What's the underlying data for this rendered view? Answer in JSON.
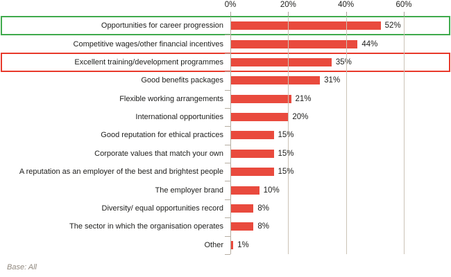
{
  "chart_data": {
    "type": "bar",
    "orientation": "horizontal",
    "title": "",
    "xlabel": "",
    "ylabel": "",
    "categories": [
      "Opportunities for career progression",
      "Competitive wages/other financial incentives",
      "Excellent training/development programmes",
      "Good benefits packages",
      "Flexible working arrangements",
      "International opportunities",
      "Good reputation for ethical practices",
      "Corporate values that match your own",
      "A reputation as an employer of the best and brightest people",
      "The employer brand",
      "Diversity/ equal opportunities record",
      "The sector in which the organisation operates",
      "Other"
    ],
    "values": [
      52,
      44,
      35,
      31,
      21,
      20,
      15,
      15,
      15,
      10,
      8,
      8,
      1
    ],
    "value_labels": [
      "52%",
      "44%",
      "35%",
      "31%",
      "21%",
      "20%",
      "15%",
      "15%",
      "15%",
      "10%",
      "8%",
      "8%",
      "1%"
    ],
    "x_axis": {
      "tick_labels": [
        "0%",
        "20%",
        "40%",
        "60%"
      ],
      "tick_values": [
        0,
        20,
        40,
        60
      ],
      "range": [
        0,
        76
      ]
    },
    "grid": true,
    "legend": false,
    "bar_color": "#e94a3d",
    "highlights": [
      {
        "index": 0,
        "color": "#3faa4c",
        "meaning": "green-box"
      },
      {
        "index": 2,
        "color": "#e8392b",
        "meaning": "red-box"
      }
    ],
    "note": "Base: All"
  }
}
